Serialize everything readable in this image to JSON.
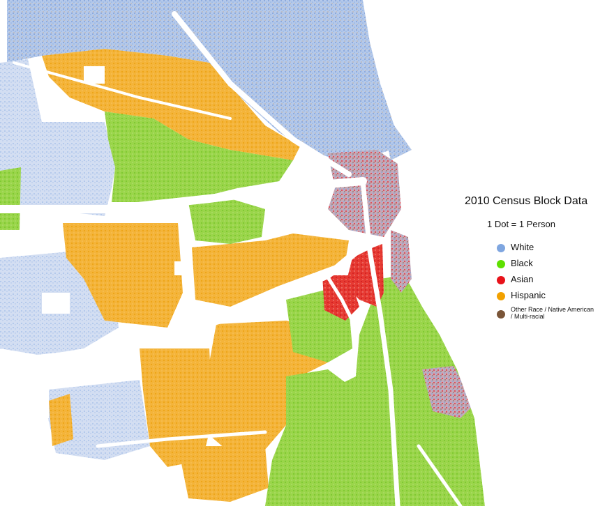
{
  "legend": {
    "title": "2010 Census Block Data",
    "subtitle": "1 Dot = 1 Person",
    "items": [
      {
        "label": "White",
        "color": "#7fa6e0"
      },
      {
        "label": "Black",
        "color": "#5ee000"
      },
      {
        "label": "Asian",
        "color": "#e8121a"
      },
      {
        "label": "Hispanic",
        "color": "#f2a100"
      },
      {
        "label": "Other Race / Native American / Multi-racial",
        "color": "#7a5538"
      }
    ]
  },
  "map": {
    "lake_color": "#ffffff",
    "regions": [
      "White",
      "Hispanic",
      "Black",
      "Asian"
    ]
  }
}
